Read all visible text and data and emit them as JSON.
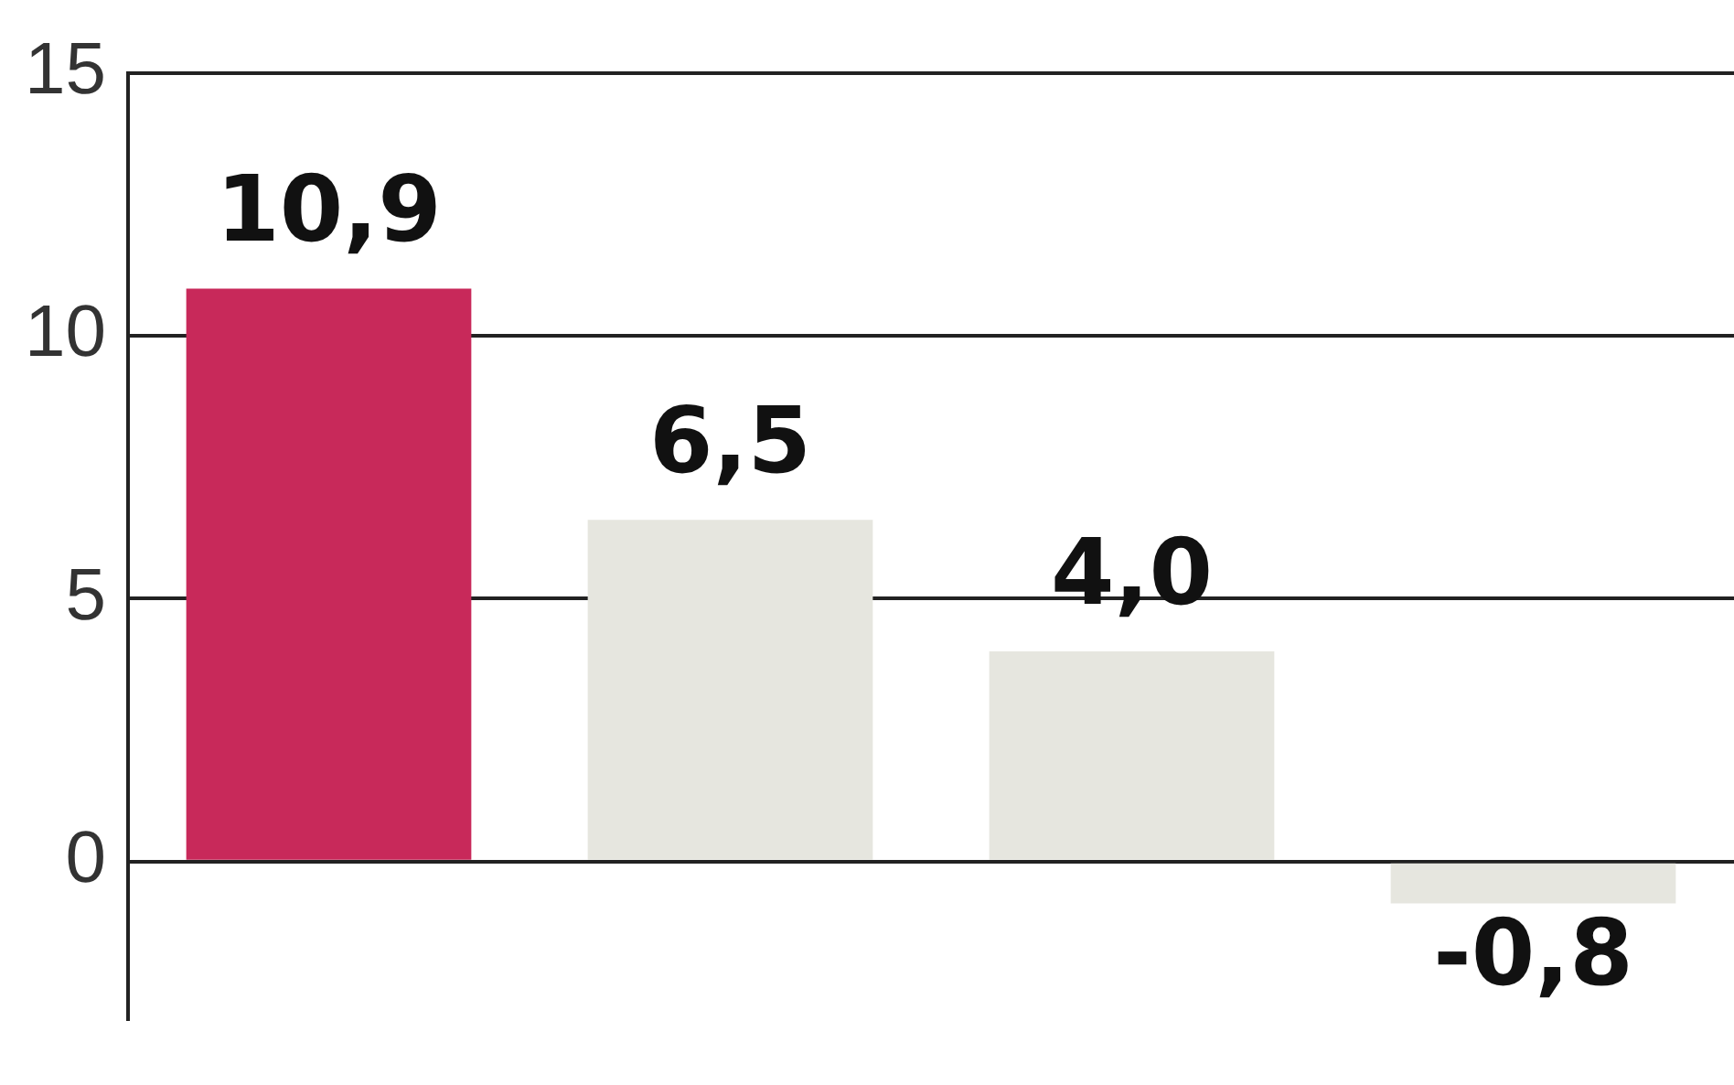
{
  "chart_data": {
    "type": "bar",
    "categories": [
      null,
      null,
      null,
      null
    ],
    "values": [
      10.9,
      6.5,
      4.0,
      -0.8
    ],
    "colors": [
      "#c8295a",
      "#e6e6df",
      "#e6e6df",
      "#e6e6df"
    ],
    "value_labels": [
      "10,9",
      "6,5",
      "4,0",
      "-0,8"
    ],
    "ylim": [
      -3,
      15
    ],
    "yticks": [
      0,
      5,
      10,
      15
    ],
    "grid": "y",
    "legend": false,
    "tick_labels": "y"
  }
}
